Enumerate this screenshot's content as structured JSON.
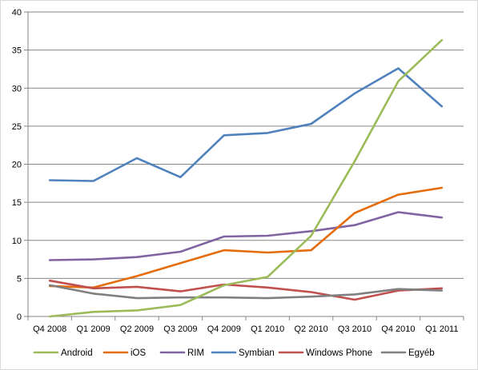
{
  "chart_data": {
    "type": "line",
    "title": "",
    "xlabel": "",
    "ylabel": "",
    "categories": [
      "Q4 2008",
      "Q1 2009",
      "Q2 2009",
      "Q3 2009",
      "Q4 2009",
      "Q1 2010",
      "Q2 2010",
      "Q3 2010",
      "Q4 2010",
      "Q1 2011"
    ],
    "ylim": [
      0,
      40
    ],
    "yticks": [
      0,
      5,
      10,
      15,
      20,
      25,
      30,
      35,
      40
    ],
    "grid": "horizontal",
    "legend_position": "bottom",
    "series": [
      {
        "name": "Android",
        "color": "#9bbb59",
        "values": [
          0.0,
          0.6,
          0.8,
          1.5,
          4.1,
          5.2,
          10.6,
          20.4,
          30.9,
          36.3
        ]
      },
      {
        "name": "iOS",
        "color": "#e46c0a",
        "values": [
          4.0,
          3.8,
          5.3,
          7.0,
          8.7,
          8.4,
          8.7,
          13.6,
          16.0,
          16.9
        ]
      },
      {
        "name": "RIM",
        "color": "#8064a2",
        "values": [
          7.4,
          7.5,
          7.8,
          8.5,
          10.5,
          10.6,
          11.2,
          12.0,
          13.7,
          13.0
        ]
      },
      {
        "name": "Symbian",
        "color": "#4f81bd",
        "values": [
          17.9,
          17.8,
          20.8,
          18.3,
          23.8,
          24.1,
          25.3,
          29.3,
          32.6,
          27.6
        ]
      },
      {
        "name": "Windows Phone",
        "color": "#c0504d",
        "values": [
          4.7,
          3.7,
          3.9,
          3.3,
          4.2,
          3.8,
          3.2,
          2.2,
          3.4,
          3.7
        ]
      },
      {
        "name": "Egyéb",
        "color": "#7f7f7f",
        "values": [
          4.1,
          3.0,
          2.4,
          2.5,
          2.5,
          2.4,
          2.6,
          2.9,
          3.6,
          3.4
        ]
      }
    ]
  }
}
